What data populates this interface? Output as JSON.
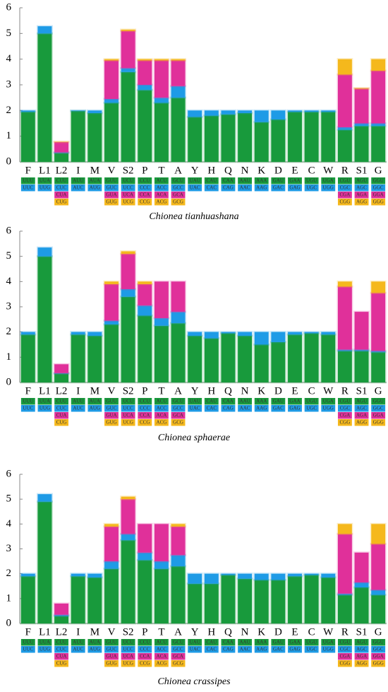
{
  "chart_data": [
    {
      "type": "bar",
      "stacked": true,
      "caption": "Chionea tianhuashana",
      "categories": [
        "F",
        "L1",
        "L2",
        "I",
        "M",
        "V",
        "S2",
        "P",
        "T",
        "A",
        "Y",
        "H",
        "Q",
        "N",
        "K",
        "D",
        "E",
        "C",
        "W",
        "R",
        "S1",
        "G"
      ],
      "codons": [
        [
          "UUU",
          "UUC"
        ],
        [
          "UUA",
          "UUG"
        ],
        [
          "CUU",
          "CUC",
          "CUA",
          "CUG"
        ],
        [
          "AUU",
          "AUC"
        ],
        [
          "AUA",
          "AUG"
        ],
        [
          "GUU",
          "GUC",
          "GUA",
          "GUG"
        ],
        [
          "UCU",
          "UCC",
          "UCA",
          "UCG"
        ],
        [
          "CCU",
          "CCC",
          "CCA",
          "CCG"
        ],
        [
          "ACU",
          "ACC",
          "ACA",
          "ACG"
        ],
        [
          "GCU",
          "GCC",
          "GCA",
          "GCG"
        ],
        [
          "UAU",
          "UAC"
        ],
        [
          "CAU",
          "CAC"
        ],
        [
          "CAA",
          "CAG"
        ],
        [
          "AAU",
          "AAC"
        ],
        [
          "AAA",
          "AAG"
        ],
        [
          "GAU",
          "GAC"
        ],
        [
          "GAA",
          "GAG"
        ],
        [
          "UGU",
          "UGC"
        ],
        [
          "UGA",
          "UGG"
        ],
        [
          "CGU",
          "CGC",
          "CGA",
          "CGG"
        ],
        [
          "AGU",
          "AGC",
          "AGA",
          "AGG"
        ],
        [
          "GGU",
          "GGC",
          "GGA",
          "GGG"
        ]
      ],
      "series": [
        {
          "color": "#189a3c",
          "values": [
            1.95,
            5.0,
            0.35,
            1.98,
            1.9,
            2.3,
            3.5,
            2.8,
            2.3,
            2.5,
            1.75,
            1.8,
            1.85,
            1.9,
            1.55,
            1.65,
            1.95,
            1.95,
            1.95,
            1.25,
            1.4,
            1.4
          ]
        },
        {
          "color": "#1e9be6",
          "values": [
            0.05,
            0.28,
            0.02,
            0.02,
            0.1,
            0.15,
            0.15,
            0.2,
            0.2,
            0.45,
            0.25,
            0.2,
            0.15,
            0.1,
            0.45,
            0.35,
            0.05,
            0.05,
            0.05,
            0.1,
            0.1,
            0.1
          ]
        },
        {
          "color": "#e0309a",
          "values": [
            null,
            null,
            0.4,
            null,
            null,
            1.5,
            1.45,
            0.95,
            1.45,
            1.0,
            null,
            null,
            null,
            null,
            null,
            null,
            null,
            null,
            null,
            2.05,
            1.35,
            2.05
          ]
        },
        {
          "color": "#f5b81c",
          "values": [
            null,
            null,
            0.01,
            null,
            null,
            0.05,
            0.05,
            0.05,
            0.05,
            0.05,
            null,
            null,
            null,
            null,
            null,
            null,
            null,
            null,
            null,
            0.6,
            0.02,
            0.45
          ]
        }
      ],
      "ylim": [
        0,
        6
      ],
      "yticks": [
        0,
        1,
        2,
        3,
        4,
        5,
        6
      ]
    },
    {
      "type": "bar",
      "stacked": true,
      "caption": "Chionea sphaerae",
      "categories": [
        "F",
        "L1",
        "L2",
        "I",
        "M",
        "V",
        "S2",
        "P",
        "T",
        "A",
        "Y",
        "H",
        "Q",
        "N",
        "K",
        "D",
        "E",
        "C",
        "W",
        "R",
        "S1",
        "G"
      ],
      "codons": [
        [
          "UUU",
          "UUC"
        ],
        [
          "UUA",
          "UUG"
        ],
        [
          "CUU",
          "CUC",
          "CUA",
          "CUG"
        ],
        [
          "AUU",
          "AUC"
        ],
        [
          "AUA",
          "AUG"
        ],
        [
          "GUU",
          "GUC",
          "GUA",
          "GUG"
        ],
        [
          "UCU",
          "UCC",
          "UCA",
          "UCG"
        ],
        [
          "CCU",
          "CCC",
          "CCA",
          "CCG"
        ],
        [
          "ACU",
          "ACC",
          "ACA",
          "ACG"
        ],
        [
          "GCU",
          "GCC",
          "GCA",
          "GCG"
        ],
        [
          "UAU",
          "UAC"
        ],
        [
          "CAU",
          "CAC"
        ],
        [
          "CAA",
          "CAG"
        ],
        [
          "AAU",
          "AAC"
        ],
        [
          "AAA",
          "AAG"
        ],
        [
          "GAU",
          "GAC"
        ],
        [
          "GAA",
          "GAG"
        ],
        [
          "UGU",
          "UGC"
        ],
        [
          "UGA",
          "UGG"
        ],
        [
          "CGU",
          "CGC",
          "CGA",
          "CGG"
        ],
        [
          "AGU",
          "AGC",
          "AGA",
          "AGG"
        ],
        [
          "GGU",
          "GGC",
          "GGA",
          "GGG"
        ]
      ],
      "series": [
        {
          "color": "#189a3c",
          "values": [
            1.9,
            5.0,
            0.35,
            1.9,
            1.85,
            2.3,
            3.4,
            2.65,
            2.25,
            2.35,
            1.85,
            1.75,
            1.95,
            1.85,
            1.5,
            1.6,
            1.9,
            1.95,
            1.9,
            1.25,
            1.25,
            1.2
          ]
        },
        {
          "color": "#1e9be6",
          "values": [
            0.1,
            0.35,
            0.02,
            0.1,
            0.15,
            0.15,
            0.3,
            0.4,
            0.3,
            0.45,
            0.15,
            0.25,
            0.05,
            0.15,
            0.5,
            0.4,
            0.1,
            0.05,
            0.1,
            0.05,
            0.05,
            0.05
          ]
        },
        {
          "color": "#e0309a",
          "values": [
            null,
            null,
            0.35,
            null,
            null,
            1.45,
            1.4,
            0.85,
            1.45,
            1.2,
            null,
            null,
            null,
            null,
            null,
            null,
            null,
            null,
            null,
            2.5,
            1.5,
            2.3
          ]
        },
        {
          "color": "#f5b81c",
          "values": [
            null,
            null,
            0.0,
            null,
            null,
            0.1,
            0.1,
            0.1,
            0.0,
            0.0,
            null,
            null,
            null,
            null,
            null,
            null,
            null,
            null,
            null,
            0.2,
            0.0,
            0.45
          ]
        }
      ],
      "ylim": [
        0,
        6
      ],
      "yticks": [
        0,
        1,
        2,
        3,
        4,
        5,
        6
      ]
    },
    {
      "type": "bar",
      "stacked": true,
      "caption": "Chionea crassipes",
      "categories": [
        "F",
        "L1",
        "L2",
        "I",
        "M",
        "V",
        "S2",
        "P",
        "T",
        "A",
        "Y",
        "H",
        "Q",
        "N",
        "K",
        "D",
        "E",
        "C",
        "W",
        "R",
        "S1",
        "G"
      ],
      "codons": [
        [
          "UUU",
          "UUC"
        ],
        [
          "UUA",
          "UUG"
        ],
        [
          "CUU",
          "CUC",
          "CUA",
          "CUG"
        ],
        [
          "AUU",
          "AUC"
        ],
        [
          "AUA",
          "AUG"
        ],
        [
          "GUU",
          "GUC",
          "GUA",
          "GUG"
        ],
        [
          "UCU",
          "UCC",
          "UCA",
          "UCG"
        ],
        [
          "CCU",
          "CCC",
          "CCA",
          "CCG"
        ],
        [
          "ACU",
          "ACC",
          "ACA",
          "ACG"
        ],
        [
          "GCU",
          "GCC",
          "GCA",
          "GCG"
        ],
        [
          "UAU",
          "UAC"
        ],
        [
          "CAU",
          "CAC"
        ],
        [
          "CAA",
          "CAG"
        ],
        [
          "AAU",
          "AAC"
        ],
        [
          "AAA",
          "AAG"
        ],
        [
          "GAU",
          "GAC"
        ],
        [
          "GAA",
          "GAG"
        ],
        [
          "UGU",
          "UGC"
        ],
        [
          "UGA",
          "UGG"
        ],
        [
          "CGU",
          "CGC",
          "CGA",
          "CGG"
        ],
        [
          "AGU",
          "AGC",
          "AGA",
          "AGG"
        ],
        [
          "GGU",
          "GGC",
          "GGA",
          "GGG"
        ]
      ],
      "series": [
        {
          "color": "#189a3c",
          "values": [
            1.9,
            4.9,
            0.3,
            1.9,
            1.85,
            2.2,
            3.35,
            2.55,
            2.2,
            2.3,
            1.6,
            1.6,
            1.95,
            1.8,
            1.75,
            1.75,
            1.9,
            1.95,
            1.85,
            1.15,
            1.45,
            1.15
          ]
        },
        {
          "color": "#1e9be6",
          "values": [
            0.1,
            0.3,
            0.05,
            0.1,
            0.15,
            0.3,
            0.25,
            0.3,
            0.3,
            0.45,
            0.4,
            0.4,
            0.05,
            0.2,
            0.25,
            0.25,
            0.1,
            0.05,
            0.15,
            0.05,
            0.2,
            0.2
          ]
        },
        {
          "color": "#e0309a",
          "values": [
            null,
            null,
            0.45,
            null,
            null,
            1.4,
            1.4,
            1.15,
            1.5,
            1.15,
            null,
            null,
            null,
            null,
            null,
            null,
            null,
            null,
            null,
            2.4,
            1.2,
            1.85
          ]
        },
        {
          "color": "#f5b81c",
          "values": [
            null,
            null,
            0.0,
            null,
            null,
            0.1,
            0.1,
            0.0,
            0.0,
            0.1,
            null,
            null,
            null,
            null,
            null,
            null,
            null,
            null,
            null,
            0.4,
            0.0,
            0.8
          ]
        }
      ],
      "ylim": [
        0,
        6
      ],
      "yticks": [
        0,
        1,
        2,
        3,
        4,
        5,
        6
      ]
    }
  ]
}
